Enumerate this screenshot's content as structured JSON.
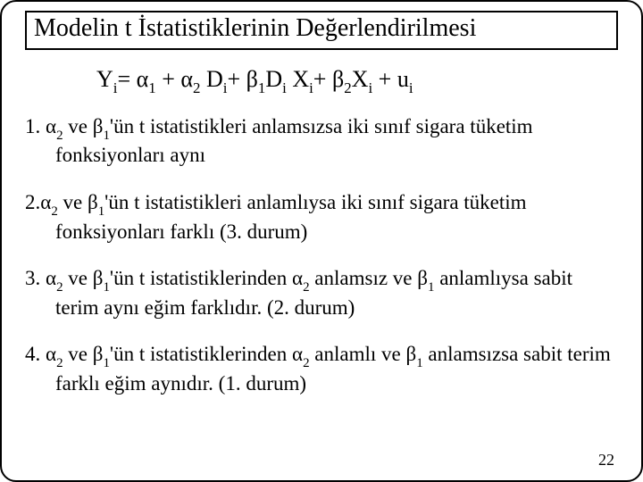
{
  "title": "Modelin t İstatistiklerinin Değerlendirilmesi",
  "equation": {
    "lhs": "Y",
    "lhs_sub": "i",
    "eq": "= ",
    "a": "α",
    "one": "1",
    "plus": " + ",
    "two": "2",
    "space": " ",
    "D": "D",
    "i": "i",
    "b": "β",
    "X": "X",
    "u": "u",
    "plus2": "+ "
  },
  "items": {
    "p1_num": "1. ",
    "p1a": " ve ",
    "p1b": "'ün t istatistikleri anlamsızsa  iki sınıf sigara  tüketim fonksiyonları aynı",
    "p2_num": "2.",
    "p2b": "'ün t istatistikleri anlamlıysa  iki sınıf sigara  tüketim fonksiyonları farklı (3. durum)",
    "p3_num": "3. ",
    "p3b": "'ün t istatistiklerinden ",
    "p3c": " anlamsız ve ",
    "p3d": " anlamlıysa sabit terim aynı eğim farklıdır. (2. durum)",
    "p4_num": "4. ",
    "p4c": " anlamlı ve ",
    "p4d": " anlamsızsa sabit terim farklı eğim aynıdır. (1. durum)"
  },
  "sym": {
    "a": "α",
    "b": "β",
    "s1": "1",
    "s2": "2"
  },
  "pagenum": "22"
}
